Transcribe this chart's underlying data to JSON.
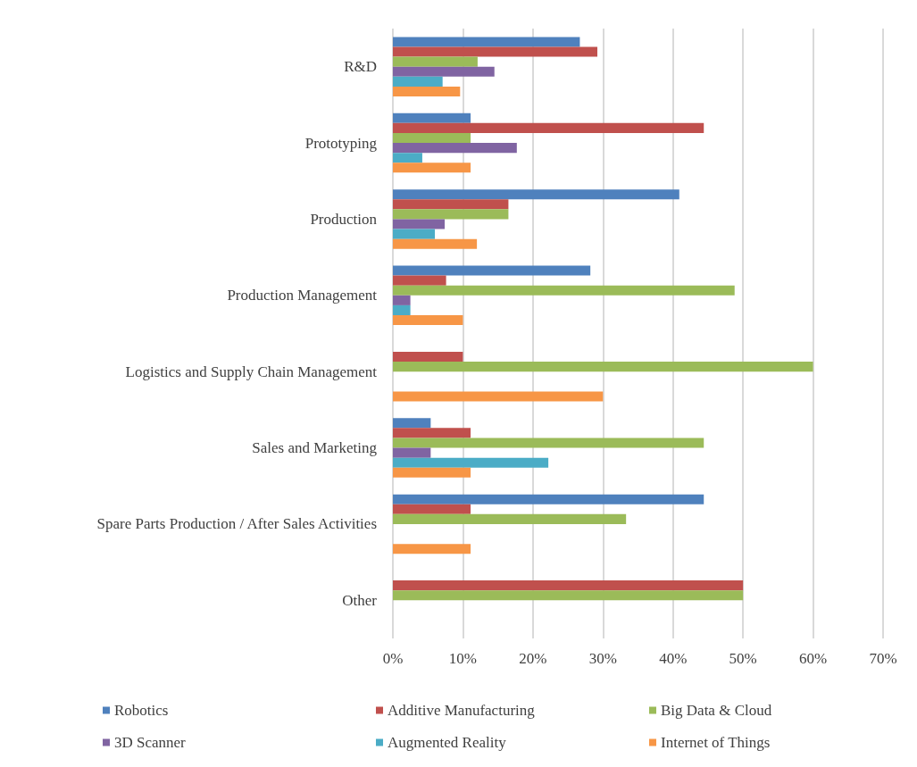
{
  "chart_data": {
    "type": "bar",
    "orientation": "horizontal",
    "categories": [
      "R&D",
      "Prototyping",
      "Production",
      "Production Management",
      "Logistics and Supply Chain Management",
      "Sales and Marketing",
      "Spare Parts Production / After Sales Activities",
      "Other"
    ],
    "series": [
      {
        "name": "Robotics",
        "color": "#4f81bd",
        "values": [
          26.7,
          11.1,
          40.9,
          28.2,
          0,
          5.4,
          44.4,
          0
        ]
      },
      {
        "name": "Additive Manufacturing",
        "color": "#c0504d",
        "values": [
          29.2,
          44.4,
          16.5,
          7.6,
          10,
          11.1,
          11.1,
          50
        ]
      },
      {
        "name": "Big Data & Cloud",
        "color": "#9bbb59",
        "values": [
          12.1,
          11.1,
          16.5,
          48.8,
          60,
          44.4,
          33.3,
          50
        ]
      },
      {
        "name": "3D Scanner",
        "color": "#8064a2",
        "values": [
          14.5,
          17.7,
          7.4,
          2.5,
          0,
          5.4,
          0,
          0
        ]
      },
      {
        "name": "Augmented Reality",
        "color": "#4bacc6",
        "values": [
          7.1,
          4.2,
          6.0,
          2.5,
          0,
          22.2,
          0,
          0
        ]
      },
      {
        "name": "Internet of Things",
        "color": "#f79646",
        "values": [
          9.6,
          11.1,
          12.0,
          10.0,
          30,
          11.1,
          11.1,
          0
        ]
      }
    ],
    "xlim": [
      0,
      70
    ],
    "xticks": [
      {
        "value": 0,
        "label": "0%"
      },
      {
        "value": 10,
        "label": "10%"
      },
      {
        "value": 20,
        "label": "20%"
      },
      {
        "value": 30,
        "label": "30%"
      },
      {
        "value": 40,
        "label": "40%"
      },
      {
        "value": 50,
        "label": "50%"
      },
      {
        "value": 60,
        "label": "60%"
      },
      {
        "value": 70,
        "label": "70%"
      }
    ],
    "grid": "x",
    "legend": "bottom"
  }
}
